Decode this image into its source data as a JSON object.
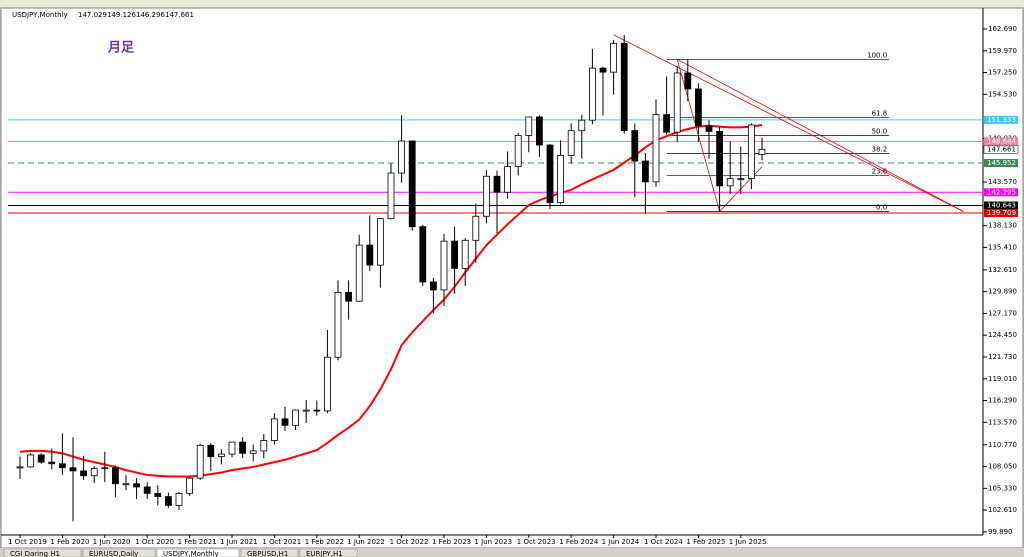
{
  "chart_data": {
    "type": "candlestick",
    "symbol": "USDJPY,Monthly",
    "annotation": "月足",
    "categories": [
      "1 Oct 2019",
      null,
      null,
      null,
      "1 Feb 2020",
      null,
      null,
      null,
      "1 Jun 2020",
      null,
      null,
      null,
      "1 Oct 2020",
      null,
      null,
      null,
      "1 Feb 2021",
      null,
      null,
      null,
      "1 Jun 2021",
      null,
      null,
      null,
      "1 Oct 2021",
      null,
      null,
      null,
      "1 Feb 2022",
      null,
      null,
      null,
      "1 Jun 2022",
      null,
      null,
      null,
      "1 Oct 2022",
      null,
      null,
      null,
      "1 Feb 2023",
      null,
      null,
      null,
      "1 Jun 2023",
      null,
      null,
      null,
      "1 Oct 2023",
      null,
      null,
      null,
      "1 Feb 2024",
      null,
      null,
      null,
      "1 Jun 2024",
      null,
      null,
      null,
      "1 Oct 2024",
      null,
      null,
      null,
      "1 Feb 2025",
      null,
      null,
      null,
      "1 Jun 2025",
      null,
      null
    ],
    "open": [
      108.0,
      108.0,
      109.5,
      108.6,
      108.4,
      107.9,
      107.5,
      106.9,
      107.8,
      107.9,
      105.9,
      105.9,
      105.5,
      104.7,
      104.3,
      103.2,
      104.7,
      106.6,
      110.7,
      109.3,
      109.6,
      111.1,
      109.7,
      110.0,
      111.3,
      114.0,
      113.2,
      115.1,
      115.1,
      115.0,
      121.7,
      129.8,
      128.7,
      135.7,
      133.2,
      139.0,
      144.7,
      148.7,
      138.0,
      131.1,
      130.1,
      136.2,
      132.8,
      136.3,
      139.3,
      144.3,
      142.3,
      145.5,
      149.4,
      151.7,
      148.2,
      141.0,
      146.9,
      149.99,
      151.3,
      157.8,
      157.3,
      160.9,
      150.0,
      146.2,
      143.6,
      152.0,
      149.8,
      157.2,
      155.2,
      150.6,
      149.9,
      143.1,
      144.0,
      144.0,
      147.029
    ],
    "high": [
      109.3,
      109.7,
      109.7,
      110.3,
      112.2,
      111.7,
      109.4,
      108.1,
      109.9,
      108.2,
      107.0,
      106.6,
      106.1,
      105.7,
      104.8,
      104.9,
      106.7,
      110.9,
      110.96,
      110.2,
      111.1,
      111.7,
      110.8,
      112.1,
      114.7,
      115.5,
      115.2,
      116.35,
      116.3,
      125.1,
      131.3,
      131.3,
      137.0,
      139.4,
      139.1,
      145.9,
      151.9,
      148.8,
      138.2,
      131.6,
      137.1,
      138.0,
      136.6,
      140.9,
      145.1,
      145.0,
      147.4,
      149.7,
      151.7,
      151.9,
      148.3,
      148.8,
      150.9,
      151.97,
      160.2,
      157.99,
      161.3,
      161.95,
      150.9,
      147.2,
      153.9,
      156.75,
      158.1,
      158.9,
      155.9,
      151.3,
      150.5,
      148.65,
      148.0,
      150.9,
      149.126
    ],
    "low": [
      106.5,
      107.9,
      108.4,
      107.7,
      107.0,
      101.2,
      106.4,
      105.99,
      106.1,
      104.2,
      105.1,
      104.0,
      104.0,
      103.2,
      102.9,
      102.6,
      104.4,
      106.4,
      107.5,
      108.3,
      109.2,
      109.1,
      108.7,
      109.1,
      110.8,
      112.5,
      112.6,
      113.5,
      114.4,
      114.7,
      121.3,
      126.4,
      128.6,
      132.5,
      130.4,
      138.9,
      143.5,
      137.5,
      130.6,
      127.2,
      128.1,
      129.6,
      130.6,
      133.5,
      138.4,
      137.2,
      141.5,
      144.4,
      147.3,
      146.7,
      140.2,
      140.8,
      145.9,
      146.5,
      150.8,
      151.9,
      154.5,
      149.6,
      141.7,
      139.6,
      142.97,
      149.5,
      148.6,
      153.7,
      148.6,
      146.5,
      139.9,
      142.1,
      142.1,
      142.7,
      146.296
    ],
    "close": [
      108.0,
      109.5,
      108.6,
      108.4,
      107.9,
      107.5,
      106.9,
      107.8,
      107.9,
      105.9,
      105.9,
      105.5,
      104.7,
      104.3,
      103.2,
      104.7,
      106.6,
      110.7,
      109.3,
      109.6,
      111.1,
      109.7,
      110.0,
      111.3,
      114.0,
      113.2,
      115.1,
      115.1,
      115.0,
      121.7,
      129.8,
      128.7,
      135.7,
      133.2,
      139.0,
      144.7,
      148.7,
      138.0,
      131.1,
      130.1,
      136.2,
      132.8,
      136.3,
      139.3,
      144.3,
      142.3,
      145.5,
      149.4,
      151.7,
      148.2,
      141.0,
      146.9,
      149.99,
      151.3,
      157.8,
      157.3,
      160.9,
      150.0,
      146.2,
      143.6,
      152.0,
      149.8,
      157.2,
      155.2,
      150.6,
      149.9,
      143.1,
      144.0,
      144.0,
      150.7,
      147.661
    ],
    "ma": {
      "color": "#ff0000",
      "values": [
        109.9,
        110.0,
        110.0,
        109.9,
        109.7,
        109.3,
        108.9,
        108.6,
        108.3,
        108.0,
        107.6,
        107.3,
        107.0,
        106.9,
        106.8,
        106.8,
        106.8,
        106.9,
        107.1,
        107.3,
        107.6,
        107.8,
        108.0,
        108.3,
        108.6,
        108.9,
        109.3,
        109.7,
        110.1,
        111.0,
        112.0,
        112.9,
        113.9,
        115.6,
        117.7,
        120.2,
        123.2,
        124.8,
        126.2,
        127.6,
        128.9,
        130.5,
        132.3,
        134.0,
        135.7,
        137.0,
        138.3,
        139.5,
        140.7,
        141.3,
        141.8,
        142.2,
        142.6,
        143.3,
        143.9,
        144.5,
        145.1,
        146.0,
        146.9,
        147.9,
        148.8,
        149.3,
        149.8,
        150.2,
        150.5,
        150.6,
        150.5,
        150.4,
        150.4,
        150.5,
        150.7
      ]
    },
    "ylim": [
      99.5,
      165.06
    ],
    "yticks": [
      {
        "value": 162.69,
        "label": "162.690"
      },
      {
        "value": 159.97,
        "label": "159.970"
      },
      {
        "value": 157.25,
        "label": "157.250"
      },
      {
        "value": 154.53,
        "label": "154.530"
      },
      {
        "value": 149.01,
        "label": "149.010"
      },
      {
        "value": 143.57,
        "label": "143.570"
      },
      {
        "value": 138.13,
        "label": "138.130"
      },
      {
        "value": 135.41,
        "label": "135.410"
      },
      {
        "value": 132.61,
        "label": "132.610"
      },
      {
        "value": 129.89,
        "label": "129.890"
      },
      {
        "value": 127.17,
        "label": "127.170"
      },
      {
        "value": 124.45,
        "label": "124.450"
      },
      {
        "value": 121.73,
        "label": "121.730"
      },
      {
        "value": 119.01,
        "label": "119.010"
      },
      {
        "value": 116.29,
        "label": "116.290"
      },
      {
        "value": 113.57,
        "label": "113.570"
      },
      {
        "value": 110.77,
        "label": "110.770"
      },
      {
        "value": 108.05,
        "label": "108.050"
      },
      {
        "value": 105.33,
        "label": "105.330"
      },
      {
        "value": 102.61,
        "label": "102.610"
      },
      {
        "value": 99.89,
        "label": "99.890"
      }
    ],
    "hlines": [
      {
        "value": 151.333,
        "color": "#40c8f0"
      },
      {
        "value": 148.644,
        "color": "#f080a0"
      },
      {
        "value": 145.952,
        "color": "#3a8a5a",
        "dashed": true
      },
      {
        "value": 142.295,
        "color": "#ff00ff"
      },
      {
        "value": 140.643,
        "color": "#000000"
      },
      {
        "value": 139.709,
        "color": "#e00000"
      }
    ],
    "fib": {
      "high": 158.9,
      "low": 139.9,
      "from": 61,
      "to": 82,
      "levels": [
        {
          "value": 100,
          "label": "100.0"
        },
        61.8,
        {
          "value": 50,
          "label": "50.0"
        },
        38.2,
        23.6,
        {
          "value": 0,
          "label": "0.0"
        }
      ]
    },
    "trendlines": [
      {
        "from": [
          56,
          161.95
        ],
        "to": [
          89,
          139.9
        ]
      },
      {
        "from": [
          62,
          158.9
        ],
        "to": [
          89,
          139.9
        ]
      },
      {
        "from": [
          62,
          158.9
        ],
        "to": [
          66,
          139.9
        ]
      },
      {
        "from": [
          66,
          139.9
        ],
        "to": [
          70,
          145.5
        ]
      }
    ],
    "tabs": [
      "CGI Daring H1",
      "EURUSD,Daily",
      "USDJPY,Monthly",
      "GBPUSD,H1",
      "EURJPY,H1"
    ],
    "active_tab": 2
  }
}
